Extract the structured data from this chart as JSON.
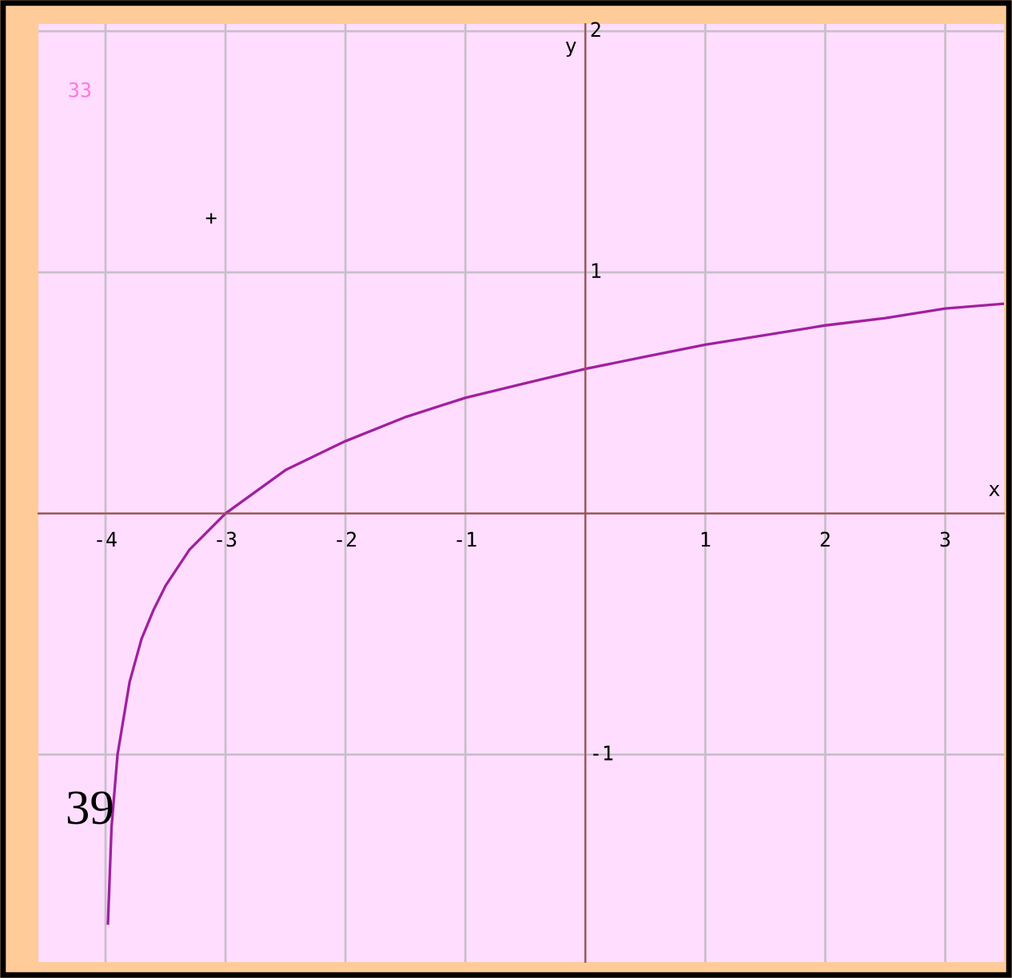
{
  "chart_data": {
    "type": "line",
    "xlabel": "x",
    "ylabel": "y",
    "xlim": [
      -4.56,
      3.49
    ],
    "ylim": [
      -1.86,
      2.03
    ],
    "xticks": [
      -4,
      -3,
      -2,
      -1,
      {
        "value": 0,
        "label": null
      },
      1,
      2,
      3
    ],
    "yticks": [
      -1,
      {
        "value": 0,
        "label": null
      },
      1,
      2
    ],
    "grid": true,
    "marker": "none",
    "line_style": "solid",
    "series": [
      {
        "color": "#a020a0",
        "x": [
          -3.98,
          -3.95,
          -3.9,
          -3.8,
          -3.7,
          -3.6,
          -3.5,
          -3.3,
          -3.0,
          -2.5,
          -2.0,
          -1.5,
          -1.0,
          -0.5,
          0,
          0.5,
          1,
          1.5,
          2,
          2.5,
          3,
          3.49
        ],
        "values": [
          -1.7,
          -1.3,
          -1.0,
          -0.7,
          -0.52,
          -0.4,
          -0.3,
          -0.15,
          0,
          0.18,
          0.3,
          0.4,
          0.48,
          0.54,
          0.6,
          0.65,
          0.7,
          0.74,
          0.78,
          0.81,
          0.85,
          0.87
        ]
      }
    ],
    "annotations": [
      "33",
      "+",
      "39"
    ]
  }
}
